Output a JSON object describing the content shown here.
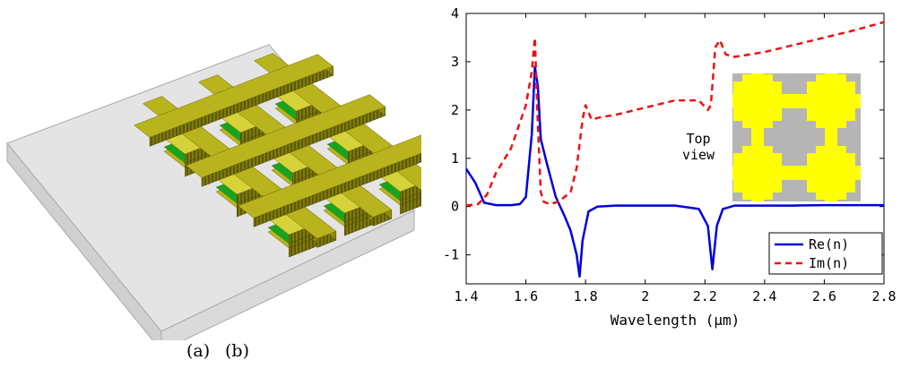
{
  "figure": {
    "caption_a": "(a)",
    "caption_b": "(b)"
  },
  "colors": {
    "gold_top": "#b9b41e",
    "gold_side": "#8f8a10",
    "gold_light": "#d6d23a",
    "green": "#17a51f",
    "substrate_top": "#e4e4e4",
    "substrate_side": "#d2d2d2",
    "re_line": "#0000dd",
    "im_line": "#ee1111",
    "inset_bg": "#b5b5b5",
    "inset_fg": "#ffff00"
  },
  "chart_data": {
    "type": "line",
    "xlabel": "Wavelength (μm)",
    "ylabel": "",
    "xlim": [
      1.4,
      2.8
    ],
    "ylim": [
      -1.6,
      4.0
    ],
    "xticks": [
      "1.4",
      "1.6",
      "1.8",
      "2",
      "2.2",
      "2.4",
      "2.6",
      "2.8"
    ],
    "yticks": [
      "-1",
      "0",
      "1",
      "2",
      "3",
      "4"
    ],
    "legend_position": "bottom-right",
    "annotation": [
      "Top",
      "view"
    ],
    "series": [
      {
        "name": "Re(n)",
        "style": "solid",
        "x": [
          1.4,
          1.43,
          1.46,
          1.5,
          1.55,
          1.58,
          1.6,
          1.62,
          1.63,
          1.64,
          1.65,
          1.67,
          1.7,
          1.73,
          1.75,
          1.77,
          1.78,
          1.79,
          1.81,
          1.84,
          1.9,
          2.0,
          2.1,
          2.18,
          2.21,
          2.225,
          2.24,
          2.26,
          2.3,
          2.4,
          2.5,
          2.6,
          2.7,
          2.8
        ],
        "y": [
          0.78,
          0.5,
          0.08,
          0.03,
          0.03,
          0.05,
          0.2,
          1.5,
          2.9,
          2.5,
          1.4,
          0.9,
          0.2,
          -0.2,
          -0.5,
          -1.0,
          -1.45,
          -0.7,
          -0.1,
          0.0,
          0.02,
          0.02,
          0.02,
          -0.05,
          -0.4,
          -1.3,
          -0.4,
          -0.05,
          0.02,
          0.02,
          0.02,
          0.03,
          0.03,
          0.03
        ]
      },
      {
        "name": "Im(n)",
        "style": "dashed",
        "x": [
          1.4,
          1.44,
          1.47,
          1.5,
          1.55,
          1.6,
          1.62,
          1.63,
          1.64,
          1.65,
          1.66,
          1.68,
          1.71,
          1.73,
          1.75,
          1.77,
          1.79,
          1.8,
          1.82,
          1.85,
          1.9,
          2.0,
          2.1,
          2.18,
          2.21,
          2.22,
          2.235,
          2.25,
          2.27,
          2.3,
          2.4,
          2.5,
          2.6,
          2.7,
          2.8
        ],
        "y": [
          0.02,
          0.05,
          0.25,
          0.7,
          1.2,
          2.1,
          2.8,
          3.5,
          1.7,
          0.3,
          0.1,
          0.05,
          0.1,
          0.2,
          0.3,
          0.8,
          1.8,
          2.1,
          1.8,
          1.85,
          1.9,
          2.05,
          2.2,
          2.2,
          2.0,
          2.1,
          3.3,
          3.45,
          3.15,
          3.1,
          3.2,
          3.35,
          3.5,
          3.65,
          3.82
        ]
      }
    ]
  }
}
